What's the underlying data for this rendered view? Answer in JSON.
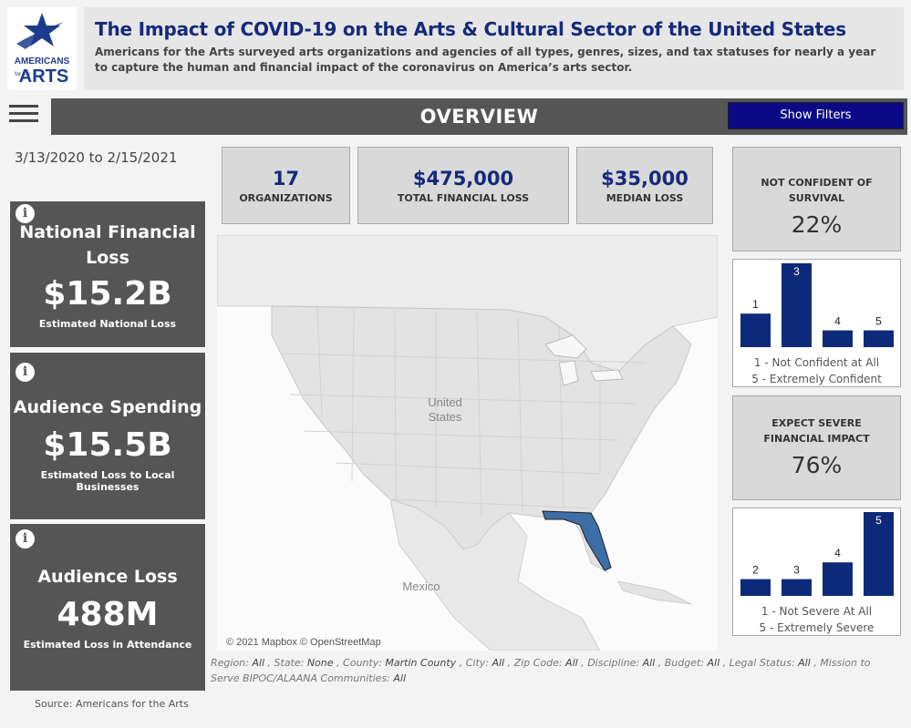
{
  "header": {
    "title": "The Impact of COVID-19 on the Arts & Cultural Sector of the United States",
    "subtitle": "Americans for the Arts surveyed arts organizations and agencies of all types, genres, sizes, and tax statuses for nearly a year to capture the human and financial impact of the coronavirus on America’s arts sector."
  },
  "logo": {
    "line1": "AMERICANS",
    "line2": "for the",
    "line3": "ARTS"
  },
  "nav": {
    "title": "OVERVIEW",
    "filters_button": "Show Filters"
  },
  "date_range": "3/13/2020 to 2/15/2021",
  "left_cards": [
    {
      "title": "National Financial Loss",
      "value": "$15.2B",
      "subtitle": "Estimated National Loss"
    },
    {
      "title": "Audience Spending",
      "value": "$15.5B",
      "subtitle": "Estimated Loss to Local Businesses"
    },
    {
      "title": "Audience Loss",
      "value": "488M",
      "subtitle": "Estimated Loss in Attendance"
    }
  ],
  "source": "Source: Americans for the Arts",
  "kpis": [
    {
      "value": "17",
      "label": "ORGANIZATIONS"
    },
    {
      "value": "$475,000",
      "label": "TOTAL FINANCIAL LOSS"
    },
    {
      "value": "$35,000",
      "label": "MEDIAN LOSS"
    }
  ],
  "map": {
    "labels": {
      "country_us": "United",
      "country_us2": "States",
      "mexico": "Mexico"
    },
    "attribution": "© 2021 Mapbox © OpenStreetMap",
    "highlight_color": "#3d6ea5"
  },
  "filters": {
    "region_label": "Region:",
    "region": "All",
    "state_label": "State:",
    "state": "None",
    "county_label": "County:",
    "county": "Martin County",
    "city_label": "City:",
    "city": "All",
    "zip_label": "Zip Code:",
    "zip": "All",
    "discipline_label": "Discipline:",
    "discipline": "All",
    "budget_label": "Budget:",
    "budget": "All",
    "legal_label": "Legal Status:",
    "legal": "All",
    "mission_label": "Mission to Serve BIPOC/ALAANA Communities:",
    "mission": "All"
  },
  "confidence": {
    "label": "NOT CONFIDENT OF SURVIVAL",
    "percent": "22%",
    "legend1": "1 - Not Confident at All",
    "legend2": "5 - Extremely Confident"
  },
  "severity": {
    "label": "EXPECT SEVERE FINANCIAL IMPACT",
    "percent": "76%",
    "legend1": "1 - Not Severe At All",
    "legend2": "5 - Extremely Severe"
  },
  "chart_data": [
    {
      "type": "bar",
      "categories": [
        "1",
        "3",
        "4",
        "5"
      ],
      "values": [
        1,
        3,
        4,
        5
      ],
      "counts": [
        2,
        5,
        1,
        1
      ],
      "color": "#0d2a7a"
    },
    {
      "type": "bar",
      "categories": [
        "2",
        "3",
        "4",
        "5"
      ],
      "values": [
        2,
        3,
        4,
        5
      ],
      "counts": [
        1,
        1,
        2,
        5
      ],
      "color": "#0d2a7a"
    }
  ]
}
